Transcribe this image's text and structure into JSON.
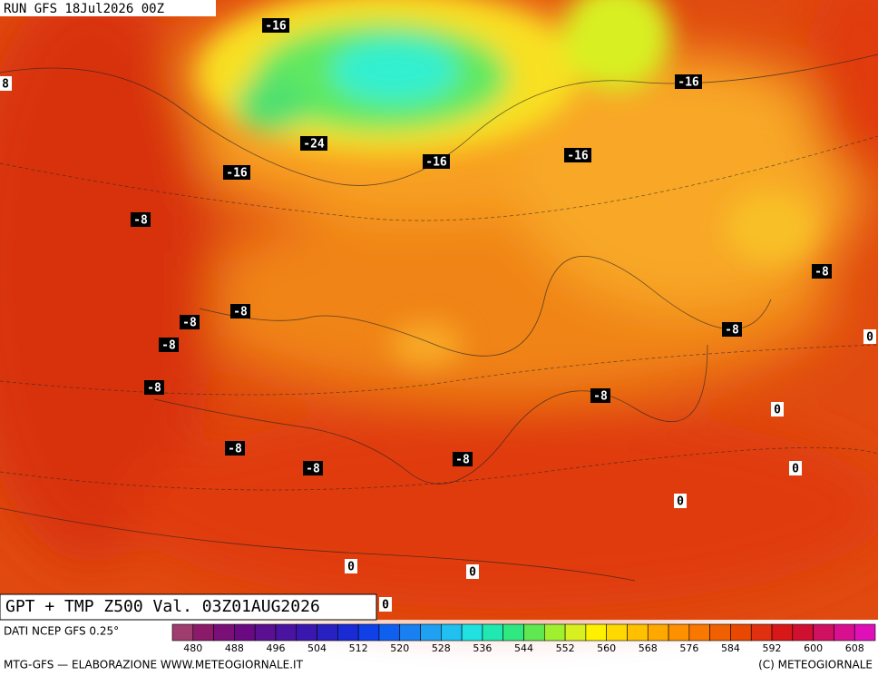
{
  "header": {
    "run": "RUN GFS 18Jul2026 00Z"
  },
  "product": "GPT + TMP Z500 Val. 03Z01AUG2026",
  "source": "DATI NCEP GFS 0.25°",
  "credit_left": "MTG-GFS — ELABORAZIONE WWW.METEOGIORNALE.IT",
  "credit_right": "(C) METEOGIORNALE",
  "colorbar": {
    "ticks": [
      480,
      488,
      496,
      504,
      512,
      520,
      528,
      536,
      544,
      552,
      560,
      568,
      576,
      584,
      592,
      600,
      608
    ],
    "colors": [
      "#9e3d6e",
      "#8b1a6b",
      "#7a0f78",
      "#6a0a82",
      "#5a1090",
      "#4a14a0",
      "#3a18b0",
      "#2820c0",
      "#1a2ad4",
      "#1040e8",
      "#1060f0",
      "#1880f0",
      "#20a0f0",
      "#20c0f0",
      "#20e0e0",
      "#20e8b0",
      "#30e880",
      "#60e850",
      "#a0f030",
      "#d8f020",
      "#fff000",
      "#ffd800",
      "#ffc000",
      "#ffa800",
      "#ff9000",
      "#f87800",
      "#f06000",
      "#e84800",
      "#e03010",
      "#d81818",
      "#d01030",
      "#d01060",
      "#d81090",
      "#e010b8"
    ]
  },
  "isotherm_labels": [
    -16,
    8,
    -16,
    -24,
    -16,
    -16,
    -16,
    -8,
    -8,
    -8,
    -8,
    -8,
    -8,
    0,
    -8,
    -8,
    0,
    -8,
    -8,
    -8,
    0,
    0,
    0,
    0,
    0
  ]
}
